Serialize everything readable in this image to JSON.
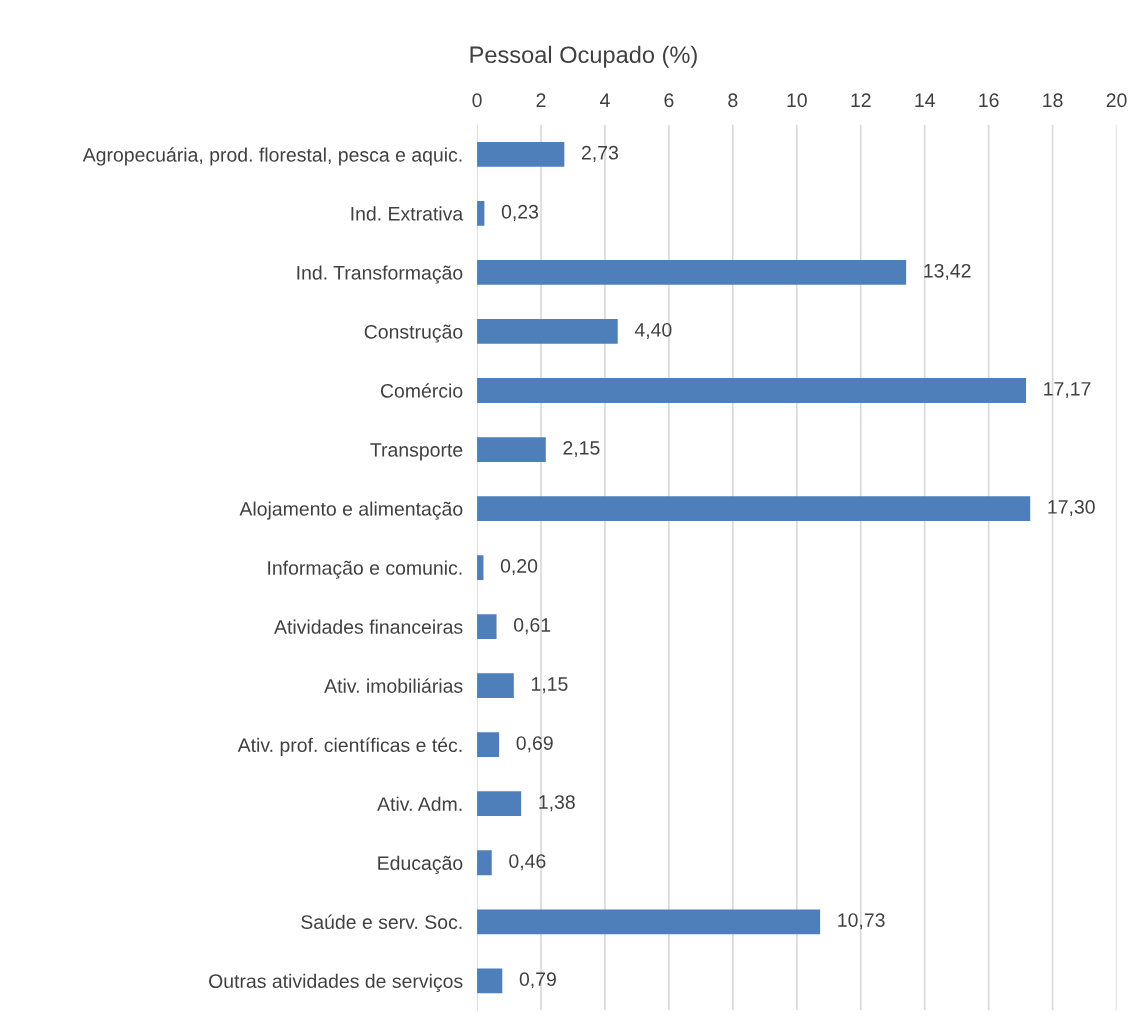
{
  "chart_data": {
    "type": "bar",
    "orientation": "horizontal",
    "title": "Pessoal Ocupado (%)",
    "categories": [
      "Agropecuária, prod. florestal, pesca e aquic.",
      "Ind. Extrativa",
      "Ind. Transformação",
      "Construção",
      "Comércio",
      "Transporte",
      "Alojamento e alimentação",
      "Informação e comunic.",
      "Atividades financeiras",
      "Ativ. imobiliárias",
      "Ativ. prof. científicas e téc.",
      "Ativ. Adm.",
      "Educação",
      "Saúde e serv. Soc.",
      "Outras atividades de serviços"
    ],
    "values": [
      2.73,
      0.23,
      13.42,
      4.4,
      17.17,
      2.15,
      17.3,
      0.2,
      0.61,
      1.15,
      0.69,
      1.38,
      0.46,
      10.73,
      0.79
    ],
    "value_labels": [
      "2,73",
      "0,23",
      "13,42",
      "4,40",
      "17,17",
      "2,15",
      "17,30",
      "0,20",
      "0,61",
      "1,15",
      "0,69",
      "1,38",
      "0,46",
      "10,73",
      "0,79"
    ],
    "color": "#4e7fbb",
    "xlim": [
      0,
      20
    ],
    "xticks": [
      0,
      2,
      4,
      6,
      8,
      10,
      12,
      14,
      16,
      18,
      20
    ],
    "grid": "x"
  }
}
